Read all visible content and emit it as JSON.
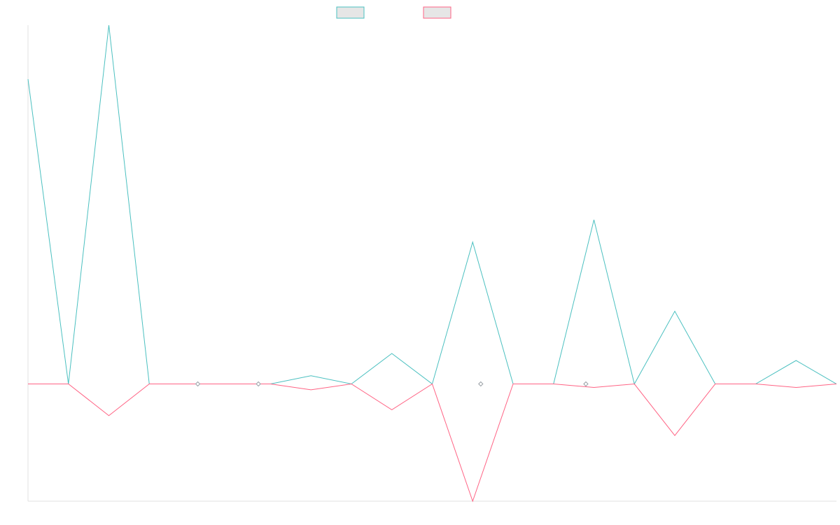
{
  "chart_data": {
    "type": "line",
    "title": "",
    "xlabel": "",
    "ylabel": "",
    "x": [
      0,
      1,
      2,
      3,
      4,
      5,
      6,
      7,
      8,
      9,
      10,
      11,
      12,
      13,
      14,
      15,
      16,
      17,
      18,
      19,
      20
    ],
    "ylim": [
      -5,
      15.3
    ],
    "grid": false,
    "legend_position": "top-center",
    "series": [
      {
        "color": "#4bc0c0",
        "values": [
          13,
          0,
          15.3,
          0,
          0,
          0,
          0,
          0.35,
          0,
          1.3,
          0,
          6.05,
          0,
          0,
          7,
          0,
          3.1,
          0,
          0,
          1,
          0
        ]
      },
      {
        "color": "#ff6384",
        "values": [
          0,
          0,
          -1.35,
          0,
          0,
          0,
          0,
          -0.25,
          0,
          -1.1,
          0,
          -5,
          0,
          0,
          -0.15,
          0,
          -2.2,
          0,
          0,
          -0.15,
          0
        ]
      }
    ],
    "point_markers": [
      {
        "x": 4.2,
        "y": 0
      },
      {
        "x": 5.7,
        "y": 0
      },
      {
        "x": 11.2,
        "y": 0
      },
      {
        "x": 13.8,
        "y": 0
      }
    ]
  }
}
